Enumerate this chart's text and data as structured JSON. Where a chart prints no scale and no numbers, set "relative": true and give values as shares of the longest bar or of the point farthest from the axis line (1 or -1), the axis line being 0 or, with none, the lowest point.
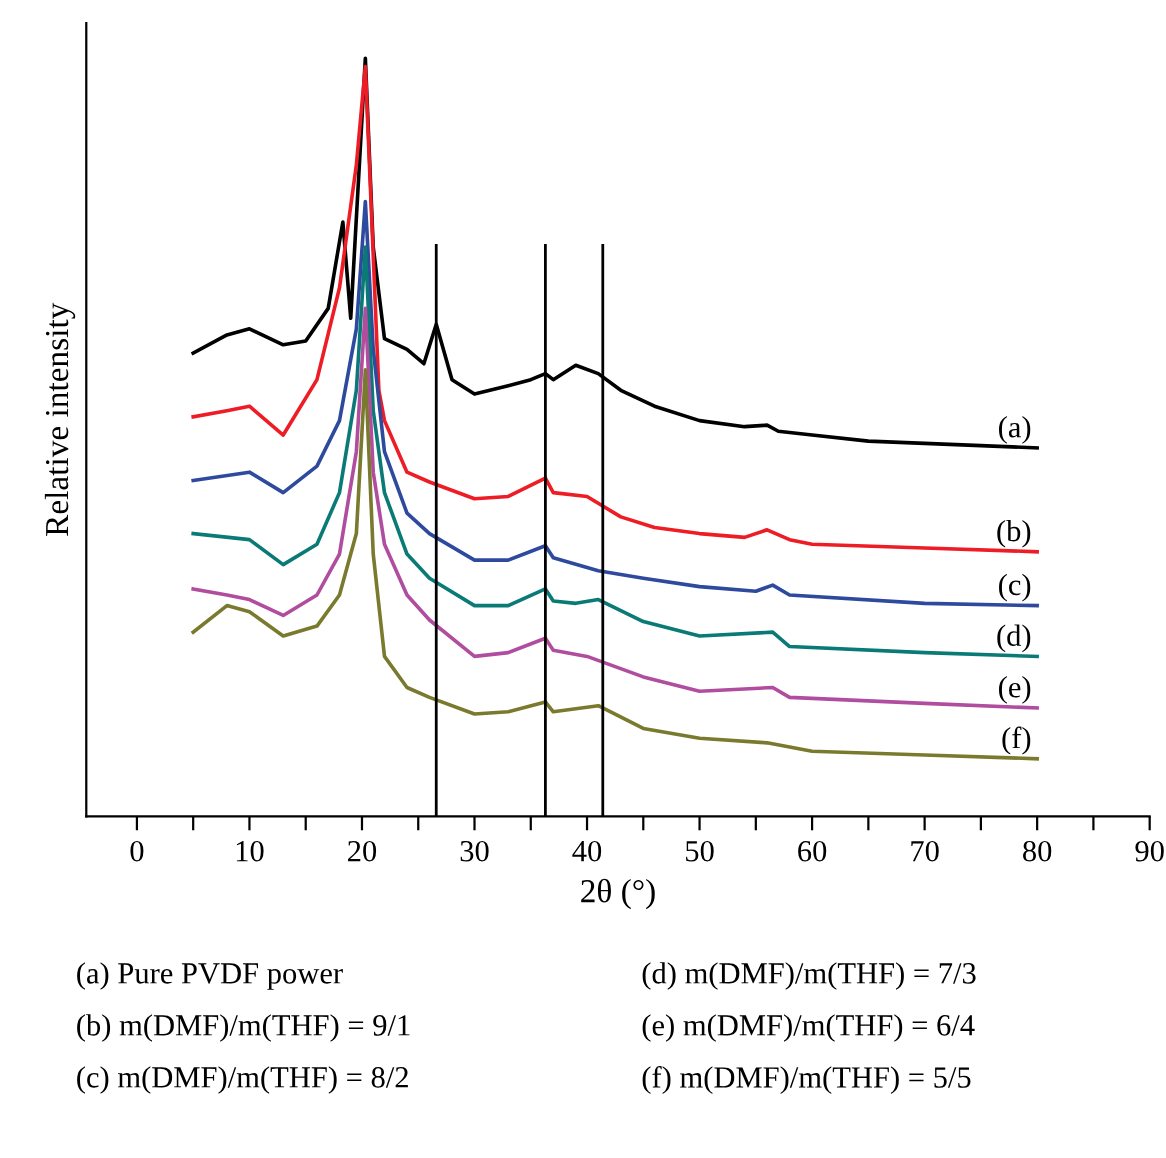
{
  "chart_data": {
    "type": "line",
    "relative": true,
    "xlabel": "2θ (°)",
    "ylabel": "Relative intensity",
    "xlim": [
      -4.5,
      90
    ],
    "xticks": [
      0,
      {
        "value": 5,
        "label": null
      },
      10,
      {
        "value": 15,
        "label": null
      },
      20,
      {
        "value": 25,
        "label": null
      },
      30,
      {
        "value": 35,
        "label": null
      },
      40,
      {
        "value": 45,
        "label": null
      },
      50,
      {
        "value": 55,
        "label": null
      },
      60,
      {
        "value": 65,
        "label": null
      },
      70,
      {
        "value": 75,
        "label": null
      },
      80,
      {
        "value": 85,
        "label": null
      },
      90
    ],
    "grid": false,
    "legend": false,
    "marker": "none",
    "line_style": "solid",
    "ref_lines": [
      {
        "axis": "x",
        "value": 26.6,
        "color": "#000000"
      },
      {
        "axis": "x",
        "value": 36.3,
        "color": "#000000"
      },
      {
        "axis": "x",
        "value": 41.4,
        "color": "#000000"
      }
    ],
    "series": [
      {
        "name": "(a)",
        "color": "#000000",
        "x": [
          5,
          8,
          10,
          13,
          15,
          17,
          18.3,
          19,
          20.3,
          21,
          22,
          24,
          25.5,
          26.6,
          28,
          30,
          33,
          35,
          36.3,
          37,
          39,
          41,
          43,
          46,
          50,
          54,
          56,
          57,
          60,
          65,
          70,
          75,
          80
        ],
        "values": [
          0.611,
          0.635,
          0.643,
          0.622,
          0.627,
          0.67,
          0.784,
          0.657,
          1,
          0.751,
          0.63,
          0.616,
          0.597,
          0.649,
          0.576,
          0.557,
          0.568,
          0.576,
          0.584,
          0.576,
          0.595,
          0.584,
          0.562,
          0.541,
          0.522,
          0.514,
          0.516,
          0.508,
          0.503,
          0.495,
          0.492,
          0.489,
          0.486
        ]
      },
      {
        "name": "(b)",
        "color": "#ee1c25",
        "x": [
          5,
          8,
          10,
          13,
          16,
          18,
          19.5,
          20.3,
          21.5,
          22,
          24,
          26,
          30,
          33,
          36.3,
          37,
          40,
          43,
          46,
          50,
          54,
          56,
          58,
          60,
          70,
          80
        ],
        "values": [
          0.527,
          0.535,
          0.541,
          0.503,
          0.576,
          0.697,
          0.859,
          0.989,
          0.562,
          0.522,
          0.454,
          0.441,
          0.419,
          0.422,
          0.446,
          0.427,
          0.422,
          0.395,
          0.381,
          0.373,
          0.368,
          0.378,
          0.365,
          0.359,
          0.354,
          0.349
        ]
      },
      {
        "name": "(c)",
        "color": "#2e4a9e",
        "x": [
          5,
          10,
          13,
          16,
          18,
          19.5,
          20.3,
          21,
          22,
          24,
          26,
          30,
          33,
          36.3,
          37,
          41,
          45,
          50,
          55,
          56.5,
          58,
          70,
          80
        ],
        "values": [
          0.443,
          0.454,
          0.427,
          0.462,
          0.522,
          0.643,
          0.811,
          0.616,
          0.481,
          0.4,
          0.373,
          0.338,
          0.338,
          0.357,
          0.341,
          0.324,
          0.314,
          0.303,
          0.297,
          0.305,
          0.292,
          0.281,
          0.278
        ]
      },
      {
        "name": "(d)",
        "color": "#0a7a77",
        "x": [
          5,
          10,
          13,
          16,
          18,
          19.5,
          20.3,
          21,
          22,
          24,
          26,
          30,
          33,
          36.3,
          37,
          39,
          41,
          45,
          50,
          56.5,
          58,
          70,
          80
        ],
        "values": [
          0.373,
          0.365,
          0.332,
          0.359,
          0.427,
          0.562,
          0.751,
          0.535,
          0.427,
          0.346,
          0.314,
          0.278,
          0.278,
          0.3,
          0.284,
          0.281,
          0.286,
          0.257,
          0.238,
          0.243,
          0.224,
          0.216,
          0.211
        ]
      },
      {
        "name": "(e)",
        "color": "#b04d9e",
        "x": [
          5,
          8,
          10,
          13,
          16,
          18,
          19.5,
          20.3,
          21,
          22,
          24,
          26,
          30,
          33,
          36.3,
          37,
          40,
          45,
          50,
          56.5,
          58,
          70,
          80
        ],
        "values": [
          0.3,
          0.292,
          0.286,
          0.265,
          0.292,
          0.346,
          0.481,
          0.67,
          0.454,
          0.359,
          0.292,
          0.259,
          0.211,
          0.216,
          0.235,
          0.219,
          0.211,
          0.184,
          0.165,
          0.17,
          0.157,
          0.149,
          0.143
        ]
      },
      {
        "name": "(f)",
        "color": "#7a7a2e",
        "x": [
          5,
          8,
          10,
          13,
          16,
          18,
          19.5,
          20.3,
          21,
          22,
          24,
          26,
          30,
          33,
          36.3,
          37,
          41,
          45,
          50,
          56,
          60,
          70,
          80
        ],
        "values": [
          0.243,
          0.278,
          0.27,
          0.238,
          0.251,
          0.292,
          0.373,
          0.589,
          0.346,
          0.211,
          0.17,
          0.157,
          0.135,
          0.138,
          0.151,
          0.138,
          0.146,
          0.116,
          0.103,
          0.097,
          0.086,
          0.081,
          0.076
        ]
      }
    ],
    "annotations": [
      "(a) Pure PVDF power",
      "(d) m(DMF)/m(THF) = 7/3",
      "(b) m(DMF)/m(THF) = 9/1",
      "(e) m(DMF)/m(THF) = 6/4",
      "(c) m(DMF)/m(THF) = 8/2",
      "(f) m(DMF)/m(THF) = 5/5"
    ]
  }
}
